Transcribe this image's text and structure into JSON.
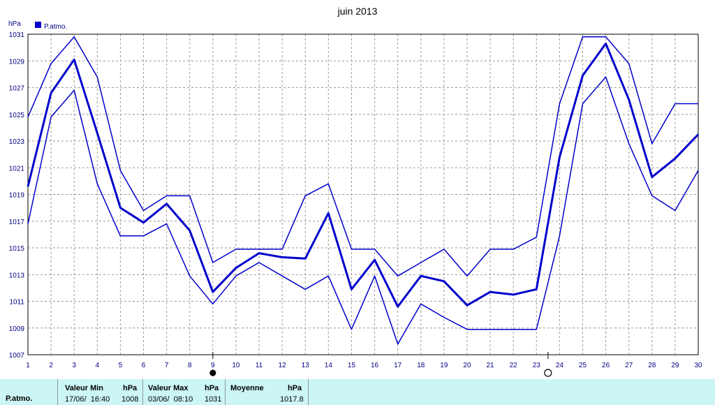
{
  "chart_data": {
    "type": "line",
    "title": "juin 2013",
    "ylabel": "hPa",
    "legend": "P.atmo.",
    "legend_position": "top-left",
    "grid": true,
    "ylim": [
      1007,
      1031
    ],
    "y_ticks": [
      "1007",
      "1009",
      "1011",
      "1013",
      "1015",
      "1017",
      "1019",
      "1021",
      "1023",
      "1025",
      "1027",
      "1029",
      "1031"
    ],
    "x": [
      1,
      2,
      3,
      4,
      5,
      6,
      7,
      8,
      9,
      10,
      11,
      12,
      13,
      14,
      15,
      16,
      17,
      18,
      19,
      20,
      21,
      22,
      23,
      24,
      25,
      26,
      27,
      28,
      29,
      30
    ],
    "x_tick_labels": [
      "1",
      "2",
      "3",
      "4",
      "5",
      "6",
      "7",
      "8",
      "9",
      "10",
      "11",
      "12",
      "13",
      "14",
      "15",
      "16",
      "17",
      "18",
      "19",
      "20",
      "21",
      "22",
      "23",
      "24",
      "25",
      "26",
      "27",
      "28",
      "29",
      "30"
    ],
    "series": [
      {
        "role": "max",
        "values": [
          1024.8,
          1028.8,
          1030.8,
          1027.8,
          1020.8,
          1017.8,
          1018.9,
          1018.9,
          1013.9,
          1014.9,
          1014.9,
          1014.9,
          1018.9,
          1019.8,
          1014.9,
          1014.9,
          1012.9,
          1013.9,
          1014.9,
          1012.9,
          1014.9,
          1014.9,
          1015.8,
          1025.8,
          1030.8,
          1030.8,
          1028.8,
          1022.8,
          1025.8,
          1025.8
        ]
      },
      {
        "role": "mean",
        "values": [
          1019.6,
          1026.6,
          1029.1,
          1023.6,
          1018.0,
          1016.9,
          1018.3,
          1016.3,
          1011.7,
          1013.5,
          1014.6,
          1014.3,
          1014.2,
          1017.6,
          1011.9,
          1014.1,
          1010.6,
          1012.9,
          1012.5,
          1010.7,
          1011.7,
          1011.5,
          1011.9,
          1021.8,
          1027.9,
          1030.3,
          1026.1,
          1020.3,
          1021.7,
          1023.5
        ]
      },
      {
        "role": "min",
        "values": [
          1016.8,
          1024.8,
          1026.8,
          1019.8,
          1015.9,
          1015.9,
          1016.8,
          1012.9,
          1010.8,
          1012.9,
          1013.9,
          1012.9,
          1011.9,
          1012.9,
          1008.9,
          1012.9,
          1007.8,
          1010.8,
          1009.8,
          1008.9,
          1008.9,
          1008.9,
          1008.9,
          1015.9,
          1025.8,
          1027.8,
          1022.8,
          1018.9,
          1017.8,
          1020.8
        ]
      }
    ],
    "moon_phases": [
      {
        "day": 9,
        "phase": "new-moon"
      },
      {
        "day": 23.5,
        "phase": "full-moon"
      }
    ],
    "colors": {
      "line": "#0000cc",
      "grid": "#999999",
      "axis_text": "#000080",
      "footer_bg": "#ccf5f5"
    }
  },
  "footer": {
    "row_label": "P.atmo.",
    "min_header": "Valeur Min",
    "min_unit": "hPa",
    "min_date": "17/06/  16:40",
    "min_value": "1008",
    "max_header": "Valeur Max",
    "max_unit": "hPa",
    "max_date": "03/06/  08:10",
    "max_value": "1031",
    "mean_header": "Moyenne",
    "mean_unit": "hPa",
    "mean_value": "1017.8"
  }
}
